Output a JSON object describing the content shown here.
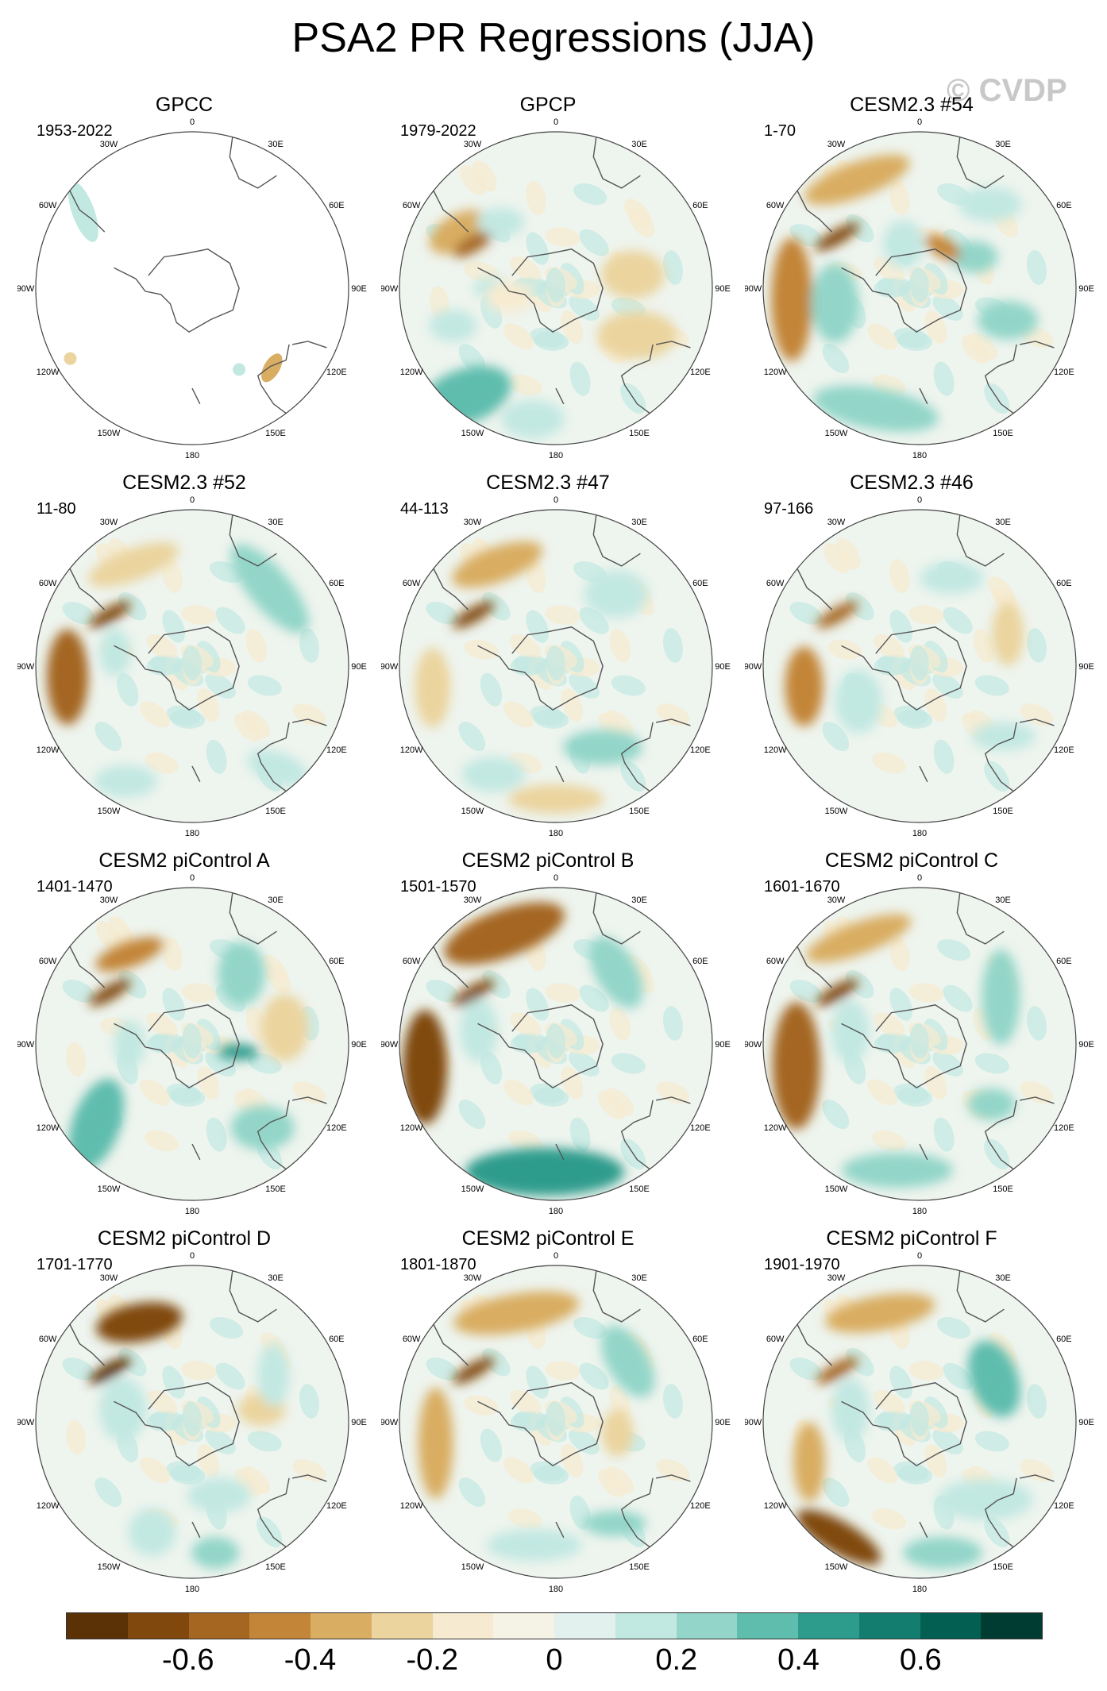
{
  "title": "PSA2 PR Regressions (JJA)",
  "watermark": "© CVDP",
  "longitude_labels": {
    "top": "0",
    "top_right": "30E",
    "right_upper": "60E",
    "right": "90E",
    "right_lower": "120E",
    "bottom_right": "150E",
    "bottom": "180",
    "bottom_left": "150W",
    "left_lower": "120W",
    "left": "90W",
    "left_upper": "60W",
    "top_left": "30W"
  },
  "panels": [
    {
      "title": "GPCC",
      "period": "1953-2022",
      "pattern": "sparse"
    },
    {
      "title": "GPCP",
      "period": "1979-2022",
      "pattern": "gpcp"
    },
    {
      "title": "CESM2.3 #54",
      "period": "1-70",
      "pattern": "m54"
    },
    {
      "title": "CESM2.3 #52",
      "period": "11-80",
      "pattern": "m52"
    },
    {
      "title": "CESM2.3 #47",
      "period": "44-113",
      "pattern": "m47"
    },
    {
      "title": "CESM2.3 #46",
      "period": "97-166",
      "pattern": "m46"
    },
    {
      "title": "CESM2 piControl A",
      "period": "1401-1470",
      "pattern": "pA"
    },
    {
      "title": "CESM2 piControl B",
      "period": "1501-1570",
      "pattern": "pB"
    },
    {
      "title": "CESM2 piControl C",
      "period": "1601-1670",
      "pattern": "pC"
    },
    {
      "title": "CESM2 piControl D",
      "period": "1701-1770",
      "pattern": "pD"
    },
    {
      "title": "CESM2 piControl E",
      "period": "1801-1870",
      "pattern": "pE"
    },
    {
      "title": "CESM2 piControl F",
      "period": "1901-1970",
      "pattern": "pF"
    }
  ],
  "colorbar": {
    "colors": [
      "#5a3205",
      "#80480c",
      "#a46620",
      "#c38538",
      "#d9ad62",
      "#ebd49e",
      "#f6ebd0",
      "#f5f2e6",
      "#e2f0ee",
      "#c2e8e2",
      "#93d6c9",
      "#5fbdae",
      "#2e9c8d",
      "#137d70",
      "#045f53",
      "#013c32"
    ],
    "tick_labels": [
      "-0.6",
      "-0.4",
      "-0.2",
      "0",
      "0.2",
      "0.4",
      "0.6"
    ],
    "tick_values": [
      -0.6,
      -0.4,
      -0.2,
      0,
      0.2,
      0.4,
      0.6
    ]
  }
}
